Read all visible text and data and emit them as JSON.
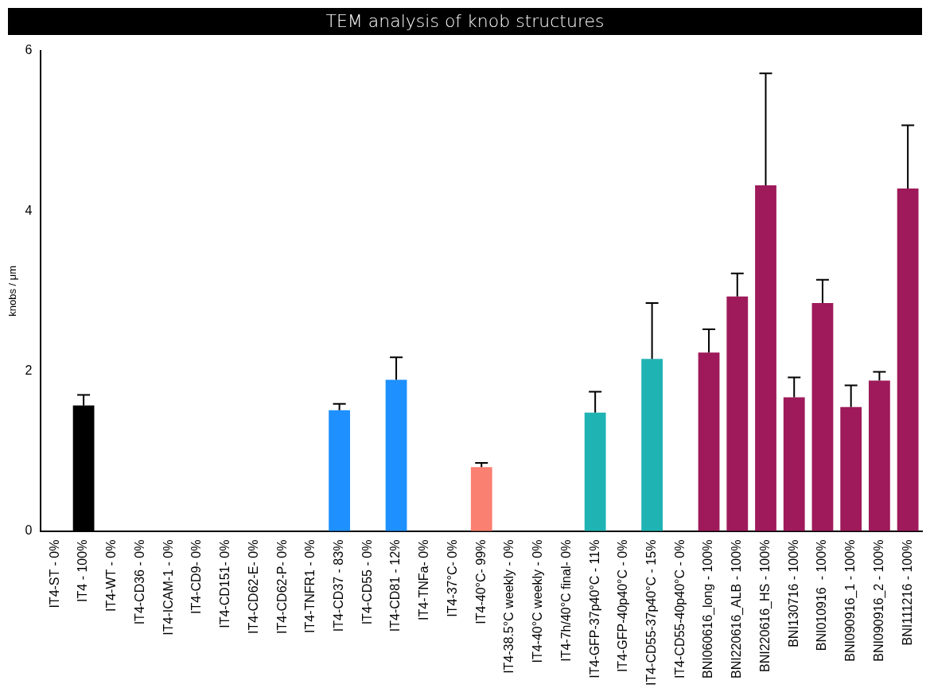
{
  "chart_data": {
    "type": "bar",
    "title": "TEM analysis of knob structures",
    "ylabel": "knobs / μm",
    "categories": [
      "IT4-ST - 0%",
      "IT4 - 100%",
      "IT4-WT - 0%",
      "IT4-CD36 - 0%",
      "IT4-ICAM-1 - 0%",
      "IT4-CD9- 0%",
      "IT4-CD151- 0%",
      "IT4-CD62-E- 0%",
      "IT4-CD62-P- 0%",
      "IT4-TNFR1 - 0%",
      "IT4-CD37 - 83%",
      "IT4-CD55 - 0%",
      "IT4-CD81 - 12%",
      "IT4-TNFa- 0%",
      "IT4-37°C- 0%",
      "IT4-40°C- 99%",
      "IT4-38.5°C weekly - 0%",
      "IT4-40°C weekly - 0%",
      "IT4-7h/40°C final- 0%",
      "IT4-GFP-37p40°C - 11%",
      "IT4-GFP-40p40°C - 0%",
      "IT4-CD55-37p40°C - 15%",
      "IT4-CD55-40p40°C - 0%",
      "BNI060616_long - 100%",
      "BNI220616_ALB - 100%",
      "BNI220616_HS - 100%",
      "BNI130716 - 100%",
      "BNI010916  - 100%",
      "BNI090916_1 - 100%",
      "BNI090916_2 - 100%",
      "BNI111216 - 100%"
    ],
    "values": [
      0,
      1.57,
      0,
      0,
      0,
      0,
      0,
      0,
      0,
      0,
      1.51,
      0,
      1.89,
      0,
      0,
      0.8,
      0,
      0,
      0,
      1.48,
      0,
      2.15,
      0,
      2.23,
      2.93,
      4.32,
      1.67,
      2.85,
      1.55,
      1.88,
      4.28
    ],
    "errors": [
      null,
      [
        1.57,
        1.7
      ],
      null,
      null,
      null,
      null,
      null,
      null,
      null,
      null,
      [
        1.51,
        1.59
      ],
      null,
      [
        1.89,
        2.17
      ],
      null,
      null,
      [
        0.8,
        0.85
      ],
      null,
      null,
      null,
      [
        1.48,
        1.74
      ],
      null,
      [
        2.15,
        2.85
      ],
      null,
      [
        2.23,
        2.52
      ],
      [
        2.93,
        3.22
      ],
      [
        4.32,
        5.72
      ],
      [
        1.67,
        1.92
      ],
      [
        2.85,
        3.14
      ],
      [
        1.55,
        1.82
      ],
      [
        1.88,
        1.99
      ],
      [
        4.28,
        5.07
      ]
    ],
    "colors": [
      "#000000",
      "#000000",
      "#000000",
      "#000000",
      "#000000",
      "#000000",
      "#000000",
      "#000000",
      "#000000",
      "#000000",
      "#1e90ff",
      "#1e90ff",
      "#1e90ff",
      "#fa8072",
      "#fa8072",
      "#fa8072",
      "#1fb3b3",
      "#1fb3b3",
      "#1fb3b3",
      "#1fb3b3",
      "#1fb3b3",
      "#1fb3b3",
      "#1fb3b3",
      "#9e1a5a",
      "#9e1a5a",
      "#9e1a5a",
      "#9e1a5a",
      "#9e1a5a",
      "#9e1a5a",
      "#9e1a5a",
      "#9e1a5a"
    ],
    "ylim": [
      0,
      6
    ],
    "yticks": [
      0,
      2,
      4,
      6
    ],
    "grid": false,
    "legend": false
  }
}
